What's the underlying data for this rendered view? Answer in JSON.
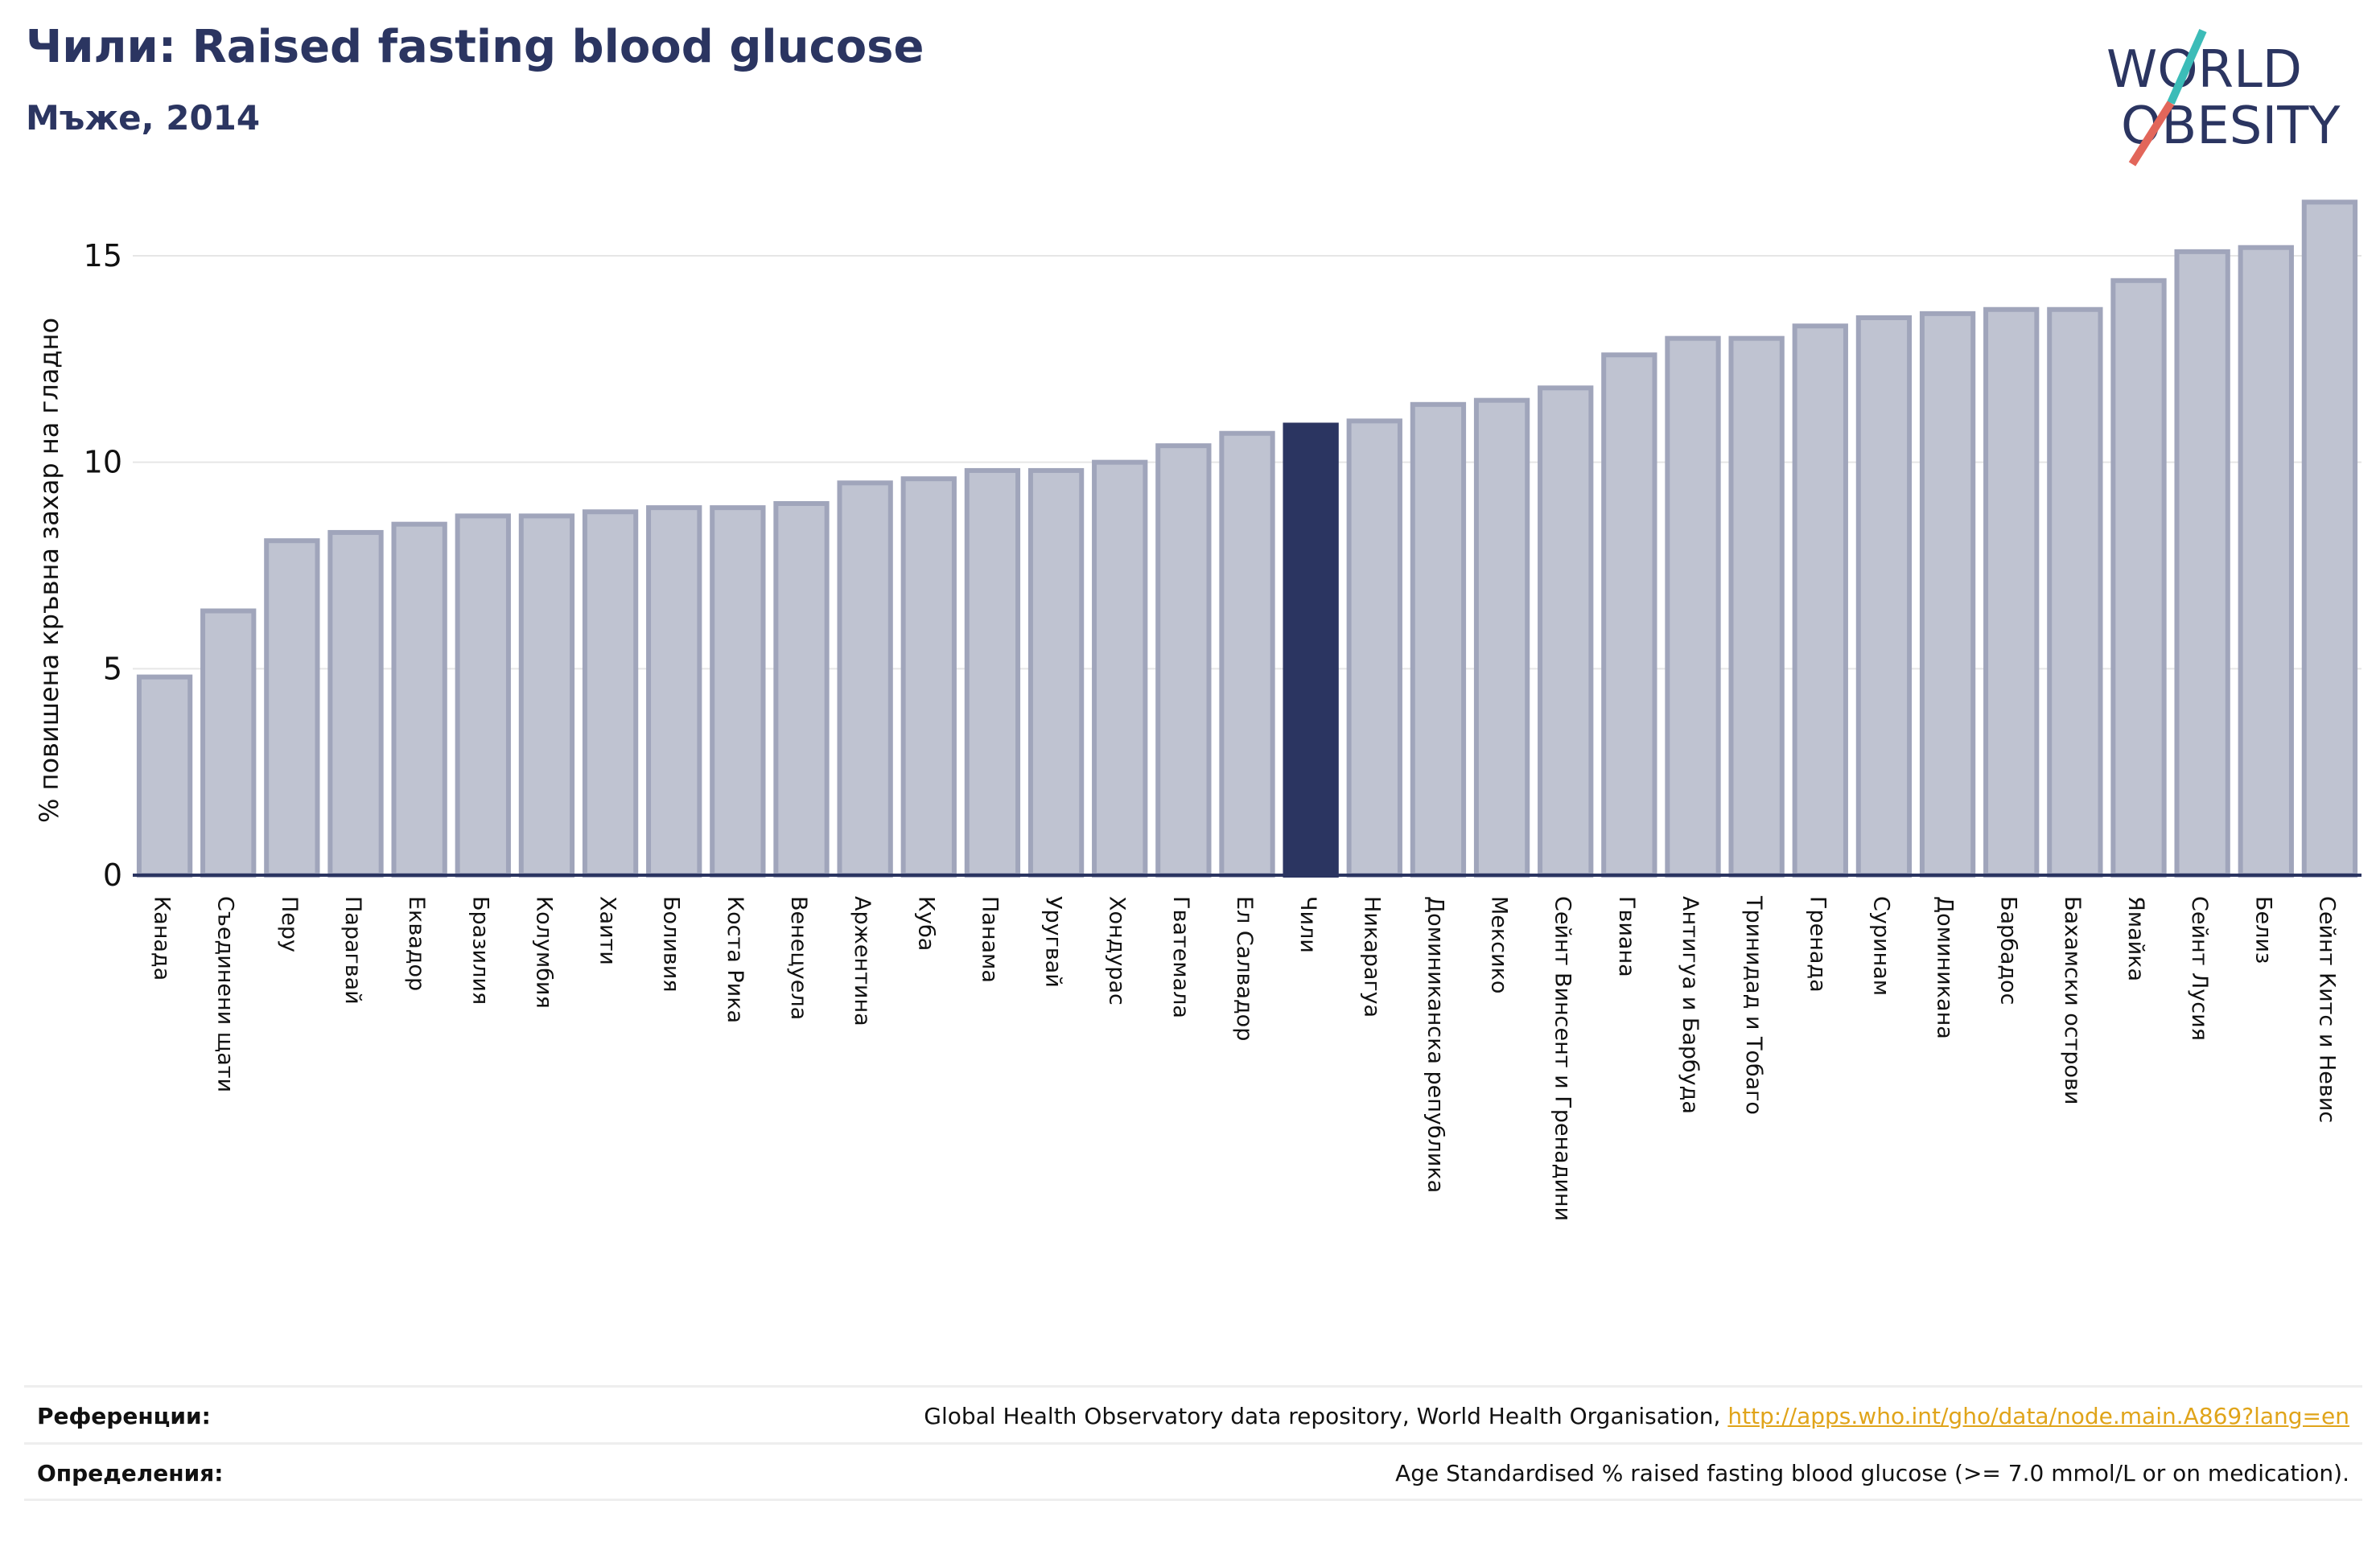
{
  "title": "Чили: Raised fasting blood glucose",
  "subtitle": "Мъже, 2014",
  "logo": {
    "line1": "WORLD",
    "line2": "OBESITY",
    "accent_colors": [
      "#3cbcb8",
      "#e2665a"
    ]
  },
  "chart_data": {
    "type": "bar",
    "title": "Чили: Raised fasting blood glucose",
    "subtitle": "Мъже, 2014",
    "xlabel": "",
    "ylabel": "% повишена кръвна захар на гладно",
    "ylim": [
      0,
      17
    ],
    "yticks": [
      0,
      5,
      10,
      15
    ],
    "grid": true,
    "highlight": "Чили",
    "colors": {
      "bar": "#bfc3d1",
      "bar_edge": "#a0a5bb",
      "highlight": "#2b3561",
      "axis": "#2b3561",
      "grid": "#e6e6e6"
    },
    "categories": [
      "Канада",
      "Съединени щати",
      "Перу",
      "Парагвай",
      "Еквадор",
      "Бразилия",
      "Колумбия",
      "Хаити",
      "Боливия",
      "Коста Рика",
      "Венецуела",
      "Аржентина",
      "Куба",
      "Панама",
      "Уругвай",
      "Хондурас",
      "Гватемала",
      "Ел Салвадор",
      "Чили",
      "Никарагуа",
      "Доминиканска република",
      "Мексико",
      "Сейнт Винсент и Гренадини",
      "Гвиана",
      "Антигуа и Барбуда",
      "Тринидад и Тобаго",
      "Гренада",
      "Суринам",
      "Доминикана",
      "Барбадос",
      "Бахамски острови",
      "Ямайка",
      "Сейнт Лусия",
      "Белиз",
      "Сейнт Китс и Невис"
    ],
    "values": [
      4.8,
      6.4,
      8.1,
      8.3,
      8.5,
      8.7,
      8.7,
      8.8,
      8.9,
      8.9,
      9.0,
      9.5,
      9.6,
      9.8,
      9.8,
      10.0,
      10.4,
      10.7,
      10.9,
      11.0,
      11.4,
      11.5,
      11.8,
      12.6,
      13.0,
      13.0,
      13.3,
      13.5,
      13.6,
      13.7,
      13.7,
      14.4,
      15.1,
      15.2,
      16.3
    ]
  },
  "footer": {
    "references_label": "Референции:",
    "references_text": "Global Health Observatory data repository, World Health Organisation, ",
    "references_link": "http://apps.who.int/gho/data/node.main.A869?lang=en",
    "definitions_label": "Определения:",
    "definitions_text": "Age Standardised % raised fasting blood glucose (>= 7.0 mmol/L or on medication)."
  }
}
